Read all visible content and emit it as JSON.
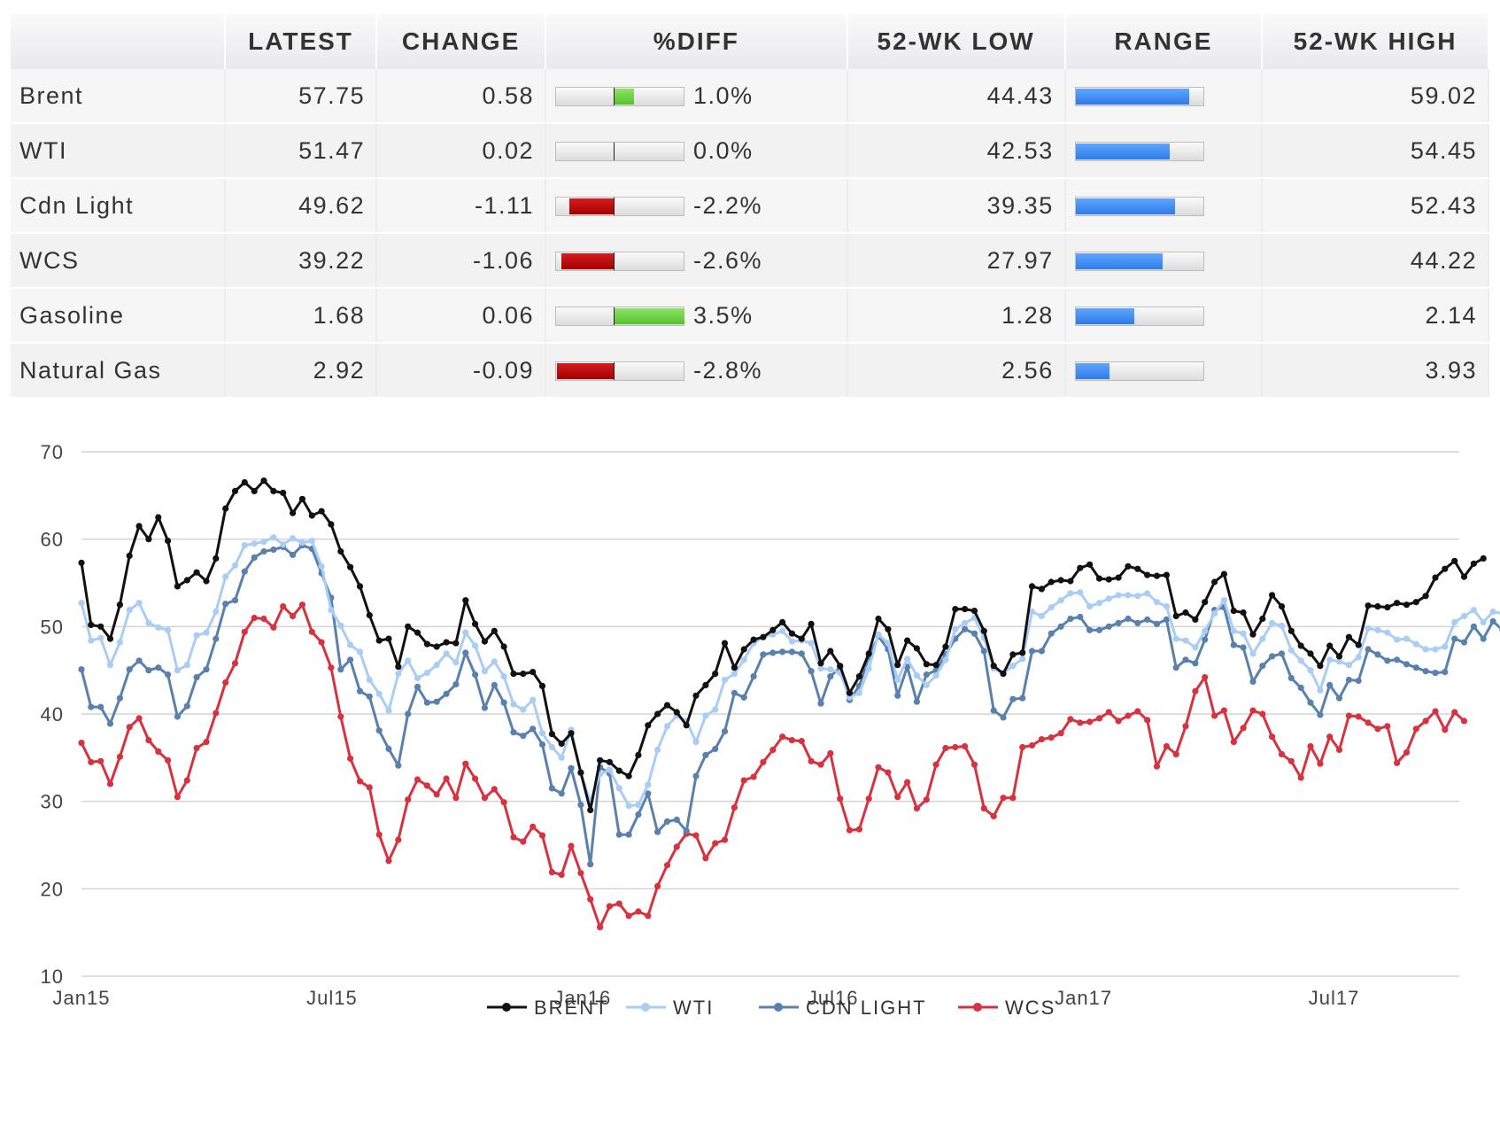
{
  "table": {
    "headers": [
      "",
      "LATEST",
      "CHANGE",
      "%DIFF",
      "52-WK LOW",
      "RANGE",
      "52-WK HIGH"
    ],
    "rows": [
      {
        "name": "Brent",
        "latest": "57.75",
        "change": "0.58",
        "pct": "1.0%",
        "pct_value": 1.0,
        "low": "44.43",
        "high": "59.02",
        "range_position": 0.9
      },
      {
        "name": "WTI",
        "latest": "51.47",
        "change": "0.02",
        "pct": "0.0%",
        "pct_value": 0.0,
        "low": "42.53",
        "high": "54.45",
        "range_position": 0.75
      },
      {
        "name": "Cdn Light",
        "latest": "49.62",
        "change": "-1.11",
        "pct": "-2.2%",
        "pct_value": -2.2,
        "low": "39.35",
        "high": "52.43",
        "range_position": 0.79
      },
      {
        "name": "WCS",
        "latest": "39.22",
        "change": "-1.06",
        "pct": "-2.6%",
        "pct_value": -2.6,
        "low": "27.97",
        "high": "44.22",
        "range_position": 0.69
      },
      {
        "name": "Gasoline",
        "latest": "1.68",
        "change": "0.06",
        "pct": "3.5%",
        "pct_value": 3.5,
        "low": "1.28",
        "high": "2.14",
        "range_position": 0.47
      },
      {
        "name": "Natural Gas",
        "latest": "2.92",
        "change": "-0.09",
        "pct": "-2.8%",
        "pct_value": -2.8,
        "low": "2.56",
        "high": "3.93",
        "range_position": 0.27
      }
    ]
  },
  "colors": {
    "brent": "#111111",
    "wti": "#a9cdf5",
    "cdn_light": "#5a80ad",
    "wcs": "#d7323f",
    "pos": "#5cc62e",
    "neg": "#b00000",
    "range": "#3b86f0"
  },
  "chart_data": {
    "type": "line",
    "ylim": [
      10,
      70
    ],
    "yticks": [
      10,
      20,
      30,
      40,
      50,
      60,
      70
    ],
    "xlim": [
      "2015-01",
      "2017-10"
    ],
    "xticks": [
      "Jan15",
      "Jul15",
      "Jan16",
      "Jul16",
      "Jan17",
      "Jul17"
    ],
    "x_start": "2015-01",
    "x_step": "weekly",
    "series": [
      {
        "name": "BRENT",
        "values": [
          57.3,
          50.2,
          50,
          48.6,
          52.5,
          58.1,
          61.5,
          60,
          62.5,
          59.8,
          54.6,
          55.3,
          56.2,
          55.2,
          57.8,
          63.5,
          65.5,
          66.5,
          65.5,
          66.7,
          65.5,
          65.3,
          63,
          64.6,
          62.7,
          63.2,
          61.7,
          58.6,
          56.8,
          54.6,
          51.3,
          48.4,
          48.6,
          45.4,
          50,
          49.3,
          48,
          47.7,
          48.2,
          48.1,
          53,
          50.3,
          48.3,
          49.5,
          47.7,
          44.6,
          44.6,
          44.8,
          43.2,
          37.7,
          36.6,
          37.8,
          33.3,
          29,
          34.7,
          34.5,
          33.5,
          32.9,
          35.3,
          38.7,
          40,
          41,
          40.2,
          38.7,
          42.1,
          43.3,
          44.6,
          48.1,
          45.3,
          47.4,
          48.5,
          48.8,
          49.6,
          50.5,
          49.2,
          48.6,
          50.3,
          45.8,
          47.2,
          45.5,
          42.4,
          44.3,
          46.9,
          50.9,
          49.7,
          45.6,
          48.4,
          47.5,
          45.7,
          45.6,
          47.7,
          52,
          52,
          51.8,
          49.5,
          45.5,
          44.6,
          46.8,
          47,
          54.6,
          54.3,
          55.1,
          55.3,
          55.2,
          56.7,
          57.1,
          55.5,
          55.4,
          55.6,
          56.9,
          56.6,
          55.9,
          55.8,
          55.9,
          51.2,
          51.6,
          50.8,
          52.8,
          55.1,
          56,
          51.8,
          51.6,
          49.1,
          50.9,
          53.6,
          52.3,
          49.5,
          47.8,
          46.9,
          45.5,
          47.8,
          46.6,
          48.8,
          47.9,
          52.4,
          52.3,
          52.2,
          52.7,
          52.5,
          52.8,
          53.5,
          55.6,
          56.6,
          57.5,
          55.7,
          57.2,
          57.8
        ]
      },
      {
        "name": "WTI",
        "values": [
          52.7,
          48.4,
          48.7,
          45.6,
          48.2,
          51.9,
          52.7,
          50.4,
          49.9,
          49.6,
          45,
          45.6,
          49,
          49.3,
          51.7,
          55.7,
          57,
          59.3,
          59.5,
          59.7,
          60.2,
          59.4,
          60.1,
          59.6,
          59.8,
          56.9,
          51.9,
          50.1,
          47.9,
          47.1,
          43.9,
          42.3,
          40.4,
          44.6,
          46.1,
          44.1,
          44.7,
          45.6,
          46.9,
          45.9,
          49.3,
          47.8,
          44.9,
          46,
          44.3,
          41.1,
          40.5,
          41.6,
          37.8,
          36.2,
          35,
          38.2,
          33.2,
          30,
          33.1,
          33.6,
          31.5,
          29.5,
          29.6,
          31.9,
          35.9,
          38.6,
          39.8,
          39.2,
          36.8,
          39.8,
          40.5,
          43.9,
          44.6,
          46.2,
          48.1,
          48.8,
          49.1,
          49.5,
          48.3,
          48.4,
          48.1,
          45.2,
          45.1,
          44.7,
          41.9,
          42.4,
          45.2,
          49.1,
          48.1,
          43.9,
          46.3,
          44.4,
          43.3,
          44.4,
          46.2,
          49.7,
          50.4,
          51,
          48.7,
          45.2,
          44.7,
          45.5,
          46.3,
          51.7,
          51.2,
          52.2,
          53,
          53.8,
          53.9,
          52.3,
          52.7,
          53.2,
          53.6,
          53.6,
          53.5,
          53.8,
          52.8,
          52.3,
          48.6,
          48.4,
          47.6,
          49.5,
          51.5,
          53,
          49.5,
          49.2,
          46.9,
          48.6,
          50.4,
          50.1,
          47.3,
          46.1,
          45,
          42.7,
          46.2,
          46,
          45.6,
          46.5,
          49.8,
          49.6,
          49.3,
          48.5,
          48.6,
          48,
          47.4,
          47.4,
          47.7,
          50.5,
          51.2,
          51.9,
          50.5,
          51.7,
          51.5
        ]
      },
      {
        "name": "CDN LIGHT",
        "values": [
          45.1,
          40.8,
          40.8,
          38.9,
          41.8,
          45.1,
          46.1,
          45,
          45.3,
          44.5,
          39.7,
          40.9,
          44.2,
          45.1,
          48.6,
          52.6,
          53,
          56.3,
          57.9,
          58.6,
          58.8,
          59.1,
          58.2,
          59.3,
          58.9,
          56.1,
          53.3,
          45.1,
          46.2,
          42.6,
          42,
          38.1,
          36,
          34.1,
          40,
          43.1,
          41.3,
          41.4,
          42.3,
          43.4,
          47,
          44.5,
          40.7,
          43.3,
          41.3,
          37.9,
          37.5,
          38.3,
          36.5,
          31.5,
          30.9,
          33.8,
          29.6,
          22.8,
          33.9,
          33.2,
          26.2,
          26.2,
          28.5,
          30.9,
          26.5,
          27.7,
          27.9,
          26.6,
          32.9,
          35.3,
          36,
          38,
          42.4,
          41.9,
          44.3,
          46.8,
          47,
          47.1,
          47.1,
          46.9,
          44.9,
          41.2,
          44.3,
          45.3,
          41.6,
          43.2,
          46.5,
          48.9,
          47.4,
          42.1,
          45.4,
          41.4,
          44.5,
          45,
          46.8,
          48.6,
          49.7,
          49.2,
          47.2,
          40.4,
          39.6,
          41.7,
          41.8,
          47.2,
          47.2,
          49.2,
          50,
          50.9,
          51.1,
          49.6,
          49.6,
          50,
          50.4,
          50.9,
          50.4,
          50.8,
          50.3,
          50.8,
          45.3,
          46.2,
          45.8,
          48.5,
          51.9,
          52.2,
          47.9,
          47.6,
          43.7,
          45.5,
          46.6,
          46.9,
          44.1,
          43,
          41.3,
          39.9,
          43.3,
          41.8,
          43.9,
          43.8,
          47.4,
          46.8,
          46.1,
          46.2,
          45.7,
          45.3,
          44.9,
          44.7,
          44.8,
          48.6,
          48.2,
          50,
          48.6,
          50.6,
          49.6
        ]
      },
      {
        "name": "WCS",
        "values": [
          36.7,
          34.5,
          34.6,
          32,
          35.1,
          38.5,
          39.5,
          37,
          35.7,
          34.7,
          30.5,
          32.4,
          36.1,
          36.8,
          40.1,
          43.6,
          45.8,
          49.4,
          51,
          50.9,
          49.9,
          52.3,
          51.2,
          52.5,
          49.4,
          48.2,
          45.3,
          39.7,
          34.9,
          32.3,
          31.6,
          26.2,
          23.2,
          25.6,
          30.2,
          32.5,
          31.8,
          30.8,
          32.6,
          30.4,
          34.3,
          32.6,
          30.4,
          31.4,
          29.9,
          25.9,
          25.4,
          27.1,
          26.1,
          21.9,
          21.6,
          24.9,
          21.8,
          18.8,
          15.6,
          18,
          18.3,
          16.9,
          17.4,
          16.9,
          20.3,
          22.7,
          24.8,
          26.3,
          26.1,
          23.5,
          25.2,
          25.6,
          29.3,
          32.4,
          32.8,
          34.5,
          35.9,
          37.4,
          37,
          36.9,
          34.6,
          34.2,
          35.5,
          30.3,
          26.7,
          26.8,
          30.3,
          33.9,
          33.3,
          30.5,
          32.2,
          29.2,
          30.2,
          34.2,
          36.1,
          36.2,
          36.3,
          34.2,
          29.2,
          28.3,
          30.4,
          30.4,
          36.2,
          36.4,
          37.1,
          37.3,
          37.8,
          39.4,
          39,
          39.1,
          39.5,
          40.2,
          39.2,
          39.8,
          40.3,
          39.3,
          34,
          36.3,
          35.4,
          38.6,
          42.6,
          44.2,
          39.8,
          40.4,
          36.8,
          38.4,
          40.4,
          40,
          37.4,
          35.4,
          34.6,
          32.7,
          36.3,
          34.3,
          37.4,
          35.9,
          39.8,
          39.7,
          39,
          38.3,
          38.6,
          34.4,
          35.6,
          38.3,
          39.2,
          40.3,
          38.2,
          40.2,
          39.2
        ]
      }
    ],
    "legend_position": "bottom-center"
  }
}
